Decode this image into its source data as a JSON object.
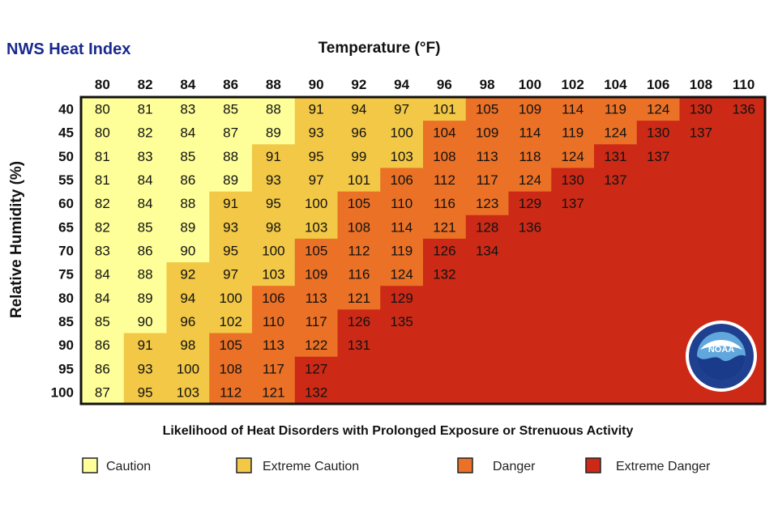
{
  "brand": "NWS Heat Index",
  "chart_data": {
    "type": "heatmap",
    "xlabel": "Temperature (°F)",
    "ylabel": "Relative Humidity (%)",
    "x": [
      80,
      82,
      84,
      86,
      88,
      90,
      92,
      94,
      96,
      98,
      100,
      102,
      104,
      106,
      108,
      110
    ],
    "y": [
      40,
      45,
      50,
      55,
      60,
      65,
      70,
      75,
      80,
      85,
      90,
      95,
      100
    ],
    "values": [
      [
        80,
        81,
        83,
        85,
        88,
        91,
        94,
        97,
        101,
        105,
        109,
        114,
        119,
        124,
        130,
        136
      ],
      [
        80,
        82,
        84,
        87,
        89,
        93,
        96,
        100,
        104,
        109,
        114,
        119,
        124,
        130,
        137,
        null
      ],
      [
        81,
        83,
        85,
        88,
        91,
        95,
        99,
        103,
        108,
        113,
        118,
        124,
        131,
        137,
        null,
        null
      ],
      [
        81,
        84,
        86,
        89,
        93,
        97,
        101,
        106,
        112,
        117,
        124,
        130,
        137,
        null,
        null,
        null
      ],
      [
        82,
        84,
        88,
        91,
        95,
        100,
        105,
        110,
        116,
        123,
        129,
        137,
        null,
        null,
        null,
        null
      ],
      [
        82,
        85,
        89,
        93,
        98,
        103,
        108,
        114,
        121,
        128,
        136,
        null,
        null,
        null,
        null,
        null
      ],
      [
        83,
        86,
        90,
        95,
        100,
        105,
        112,
        119,
        126,
        134,
        null,
        null,
        null,
        null,
        null,
        null
      ],
      [
        84,
        88,
        92,
        97,
        103,
        109,
        116,
        124,
        132,
        null,
        null,
        null,
        null,
        null,
        null,
        null
      ],
      [
        84,
        89,
        94,
        100,
        106,
        113,
        121,
        129,
        null,
        null,
        null,
        null,
        null,
        null,
        null,
        null
      ],
      [
        85,
        90,
        96,
        102,
        110,
        117,
        126,
        135,
        null,
        null,
        null,
        null,
        null,
        null,
        null,
        null
      ],
      [
        86,
        91,
        98,
        105,
        113,
        122,
        131,
        null,
        null,
        null,
        null,
        null,
        null,
        null,
        null,
        null
      ],
      [
        86,
        93,
        100,
        108,
        117,
        127,
        null,
        null,
        null,
        null,
        null,
        null,
        null,
        null,
        null,
        null
      ],
      [
        87,
        95,
        103,
        112,
        121,
        132,
        null,
        null,
        null,
        null,
        null,
        null,
        null,
        null,
        null,
        null
      ]
    ],
    "categories_thresholds": [
      {
        "name": "Caution",
        "min": 80,
        "max": 90,
        "color": "#ffff99"
      },
      {
        "name": "Extreme Caution",
        "min": 91,
        "max": 103,
        "color": "#f2c846"
      },
      {
        "name": "Danger",
        "min": 104,
        "max": 124,
        "color": "#ea7126"
      },
      {
        "name": "Extreme Danger",
        "min": 125,
        "max": 137,
        "color": "#cc2a16"
      }
    ],
    "caption": "Likelihood of Heat Disorders with Prolonged Exposure or Strenuous Activity",
    "legend": [
      {
        "label": "Caution",
        "color": "#ffff99"
      },
      {
        "label": "Extreme Caution",
        "color": "#f2c846"
      },
      {
        "label": "Danger",
        "color": "#ea7126"
      },
      {
        "label": "Extreme Danger",
        "color": "#cc2a16"
      }
    ]
  },
  "logo": {
    "icon": "noaa-logo-icon",
    "text": "NOAA"
  }
}
